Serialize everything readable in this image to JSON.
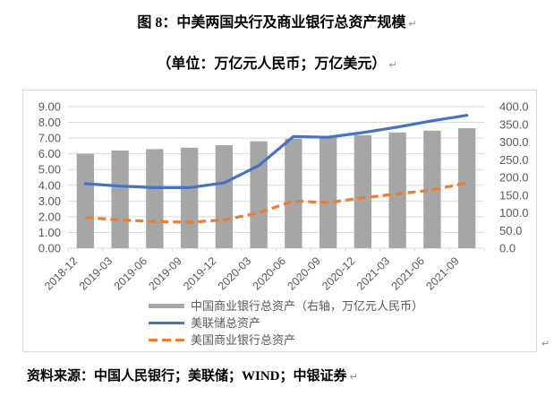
{
  "header": {
    "title": "图 8：中美两国央行及商业银行总资产规模",
    "subtitle": "（单位：万亿元人民币；万亿美元）"
  },
  "paragraph_mark": "↵",
  "footer": {
    "source": "资料来源：中国人民银行；美联储；WIND；中银证券"
  },
  "colors": {
    "bar_series": "#A6A6A6",
    "fed_line": "#4472C4",
    "us_banks_line": "#ED7D31",
    "grid": "#D9D9D9",
    "axis_text": "#595959",
    "frame_border": "#D9D9D9",
    "title_text": "#000000",
    "paragraph_mark": "#8C8C8C"
  },
  "chart_data": {
    "type": "combo",
    "title": "图 8：中美两国央行及商业银行总资产规模",
    "subtitle": "（单位：万亿元人民币；万亿美元）",
    "categories": [
      "2018-12",
      "2019-03",
      "2019-06",
      "2019-09",
      "2019-12",
      "2020-03",
      "2020-06",
      "2020-09",
      "2020-12",
      "2021-03",
      "2021-06",
      "2021-09"
    ],
    "series": [
      {
        "name": "中国商业银行总资产（右轴，万亿元人民币）",
        "type": "bar",
        "axis": "right",
        "color": "#A6A6A6",
        "values": [
          267,
          276,
          280,
          284,
          291,
          302,
          309,
          312,
          319,
          327,
          332,
          339
        ]
      },
      {
        "name": "美联储总资产",
        "type": "line",
        "line_style": "solid",
        "axis": "left",
        "color": "#4472C4",
        "values": [
          4.1,
          3.95,
          3.85,
          3.85,
          4.15,
          5.25,
          7.1,
          7.05,
          7.35,
          7.7,
          8.1,
          8.45
        ]
      },
      {
        "name": "美国商业银行总资产",
        "type": "line",
        "line_style": "dashed",
        "axis": "left",
        "color": "#ED7D31",
        "values": [
          1.95,
          1.8,
          1.7,
          1.65,
          1.8,
          2.25,
          3.0,
          2.9,
          3.2,
          3.45,
          3.7,
          4.15
        ]
      }
    ],
    "left_axis": {
      "min": 0,
      "max": 9,
      "step": 1,
      "decimals": 2,
      "labels": [
        "0.00",
        "1.00",
        "2.00",
        "3.00",
        "4.00",
        "5.00",
        "6.00",
        "7.00",
        "8.00",
        "9.00"
      ]
    },
    "right_axis": {
      "min": 0,
      "max": 400,
      "step": 50,
      "decimals": 1,
      "labels": [
        "0.0",
        "50.0",
        "100.0",
        "150.0",
        "200.0",
        "250.0",
        "300.0",
        "350.0",
        "400.0"
      ]
    },
    "grid": true,
    "legend_position": "bottom-inside"
  }
}
